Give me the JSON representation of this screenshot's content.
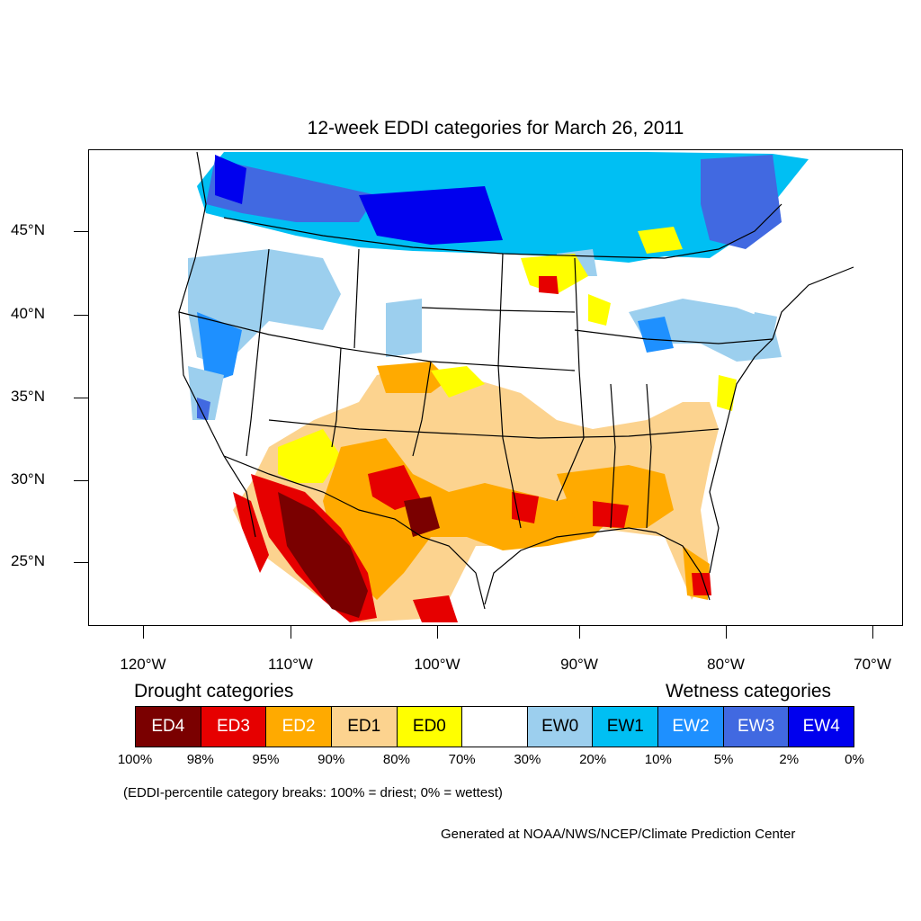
{
  "title": "12-week EDDI categories for March 26, 2011",
  "lat_labels": [
    "45°N",
    "40°N",
    "35°N",
    "30°N",
    "25°N"
  ],
  "lon_labels": [
    "120°W",
    "110°W",
    "100°W",
    "90°W",
    "80°W",
    "70°W"
  ],
  "legend": {
    "drought_heading": "Drought categories",
    "wetness_heading": "Wetness categories",
    "categories": [
      {
        "label": "ED4",
        "color": "#7a0000",
        "text_color": "#ffffff"
      },
      {
        "label": "ED3",
        "color": "#e60000",
        "text_color": "#ffffff"
      },
      {
        "label": "ED2",
        "color": "#ffaa00",
        "text_color": "#ffffff"
      },
      {
        "label": "ED1",
        "color": "#fcd38f",
        "text_color": "#000000"
      },
      {
        "label": "ED0",
        "color": "#ffff00",
        "text_color": "#000000"
      },
      {
        "label": "",
        "color": "#ffffff",
        "text_color": "#000000"
      },
      {
        "label": "EW0",
        "color": "#9ccfee",
        "text_color": "#000000"
      },
      {
        "label": "EW1",
        "color": "#00bff3",
        "text_color": "#000000"
      },
      {
        "label": "EW2",
        "color": "#1e90ff",
        "text_color": "#ffffff"
      },
      {
        "label": "EW3",
        "color": "#4169e1",
        "text_color": "#ffffff"
      },
      {
        "label": "EW4",
        "color": "#0000ee",
        "text_color": "#ffffff"
      }
    ],
    "percentiles": [
      "100%",
      "98%",
      "95%",
      "90%",
      "80%",
      "70%",
      "30%",
      "20%",
      "10%",
      "5%",
      "2%",
      "0%"
    ]
  },
  "note": "(EDDI-percentile category breaks: 100% = driest; 0% = wettest)",
  "credit": "Generated at NOAA/NWS/NCEP/Climate Prediction Center"
}
